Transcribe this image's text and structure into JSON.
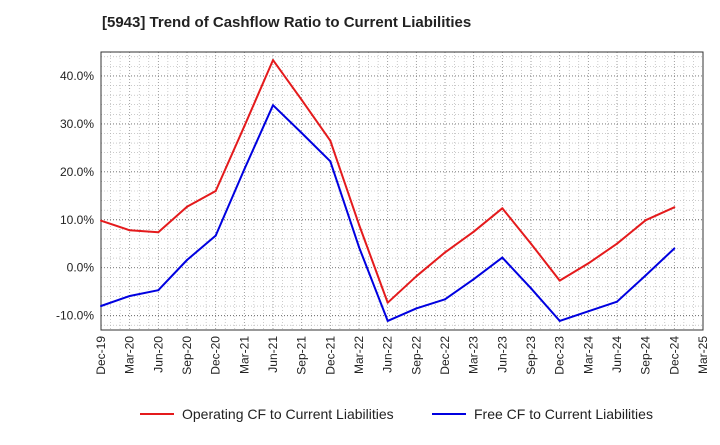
{
  "chart_data": {
    "type": "line",
    "title": "[5943]  Trend of Cashflow Ratio to Current Liabilities",
    "xlabel": "",
    "ylabel": "",
    "x": [
      "Dec-19",
      "Mar-20",
      "Jun-20",
      "Sep-20",
      "Dec-20",
      "Mar-21",
      "Jun-21",
      "Sep-21",
      "Dec-21",
      "Mar-22",
      "Jun-22",
      "Sep-22",
      "Dec-22",
      "Mar-23",
      "Jun-23",
      "Sep-23",
      "Dec-23",
      "Mar-24",
      "Jun-24",
      "Sep-24",
      "Dec-24",
      "Mar-25"
    ],
    "ylim": [
      -13,
      45
    ],
    "yticks": [
      -10,
      0,
      10,
      20,
      30,
      40
    ],
    "ytick_labels": [
      "-10.0%",
      "0.0%",
      "10.0%",
      "20.0%",
      "30.0%",
      "40.0%"
    ],
    "grid": true,
    "legend_position": "bottom",
    "series": [
      {
        "name": "Operating CF to Current Liabilities",
        "color": "#e41a1c",
        "values": [
          9.8,
          7.8,
          7.4,
          12.7,
          16.0,
          29.5,
          43.3,
          35.0,
          26.5,
          9.0,
          -7.3,
          -1.8,
          3.2,
          7.5,
          12.4,
          5.0,
          -2.7,
          0.9,
          5.0,
          9.9,
          12.6,
          null
        ]
      },
      {
        "name": "Free CF to Current Liabilities",
        "color": "#0000e0",
        "values": [
          -8.0,
          -5.9,
          -4.7,
          1.6,
          6.7,
          20.5,
          33.9,
          28.1,
          22.2,
          4.3,
          -11.1,
          -8.5,
          -6.6,
          -2.4,
          2.1,
          -4.3,
          -11.1,
          -9.1,
          -7.1,
          -1.6,
          4.0,
          null
        ]
      }
    ]
  }
}
